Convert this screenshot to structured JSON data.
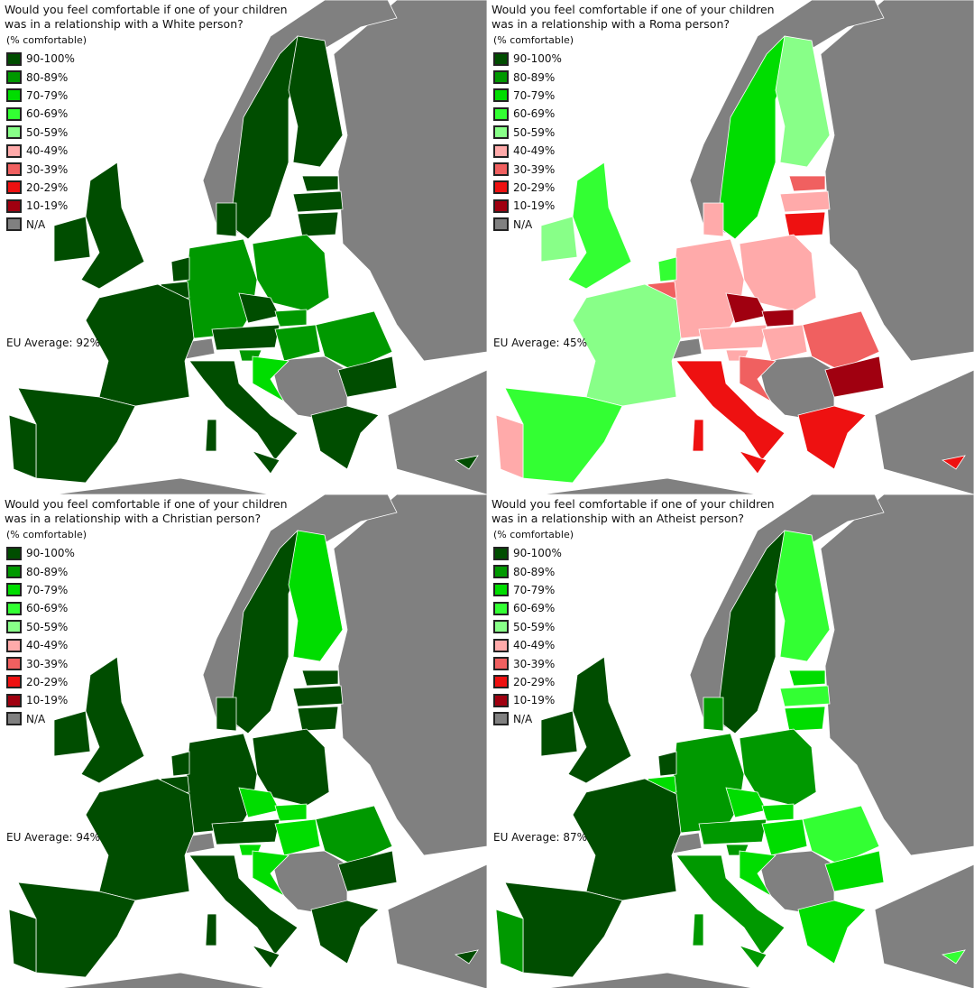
{
  "legend_unit": "(% comfortable)",
  "legend": [
    {
      "label": "90-100%",
      "color": "#004d00"
    },
    {
      "label": "80-89%",
      "color": "#009900"
    },
    {
      "label": "70-79%",
      "color": "#00dd00"
    },
    {
      "label": "60-69%",
      "color": "#33ff33"
    },
    {
      "label": "50-59%",
      "color": "#88ff88"
    },
    {
      "label": "40-49%",
      "color": "#ffaaaa"
    },
    {
      "label": "30-39%",
      "color": "#f06060"
    },
    {
      "label": "20-29%",
      "color": "#ee1111"
    },
    {
      "label": "10-19%",
      "color": "#a00010"
    },
    {
      "label": "N/A",
      "color": "#808080"
    }
  ],
  "maps": [
    {
      "title_line1": "Would you feel comfortable if one of your children",
      "title_line2": "was in a relationship with a White person?",
      "eu_average": "EU Average: 92%",
      "categories": {
        "SE": 0,
        "FI": 0,
        "EE": 0,
        "LV": 0,
        "LT": 0,
        "PL": 1,
        "DE": 1,
        "DK": 0,
        "NL": 0,
        "BE": 0,
        "FR": 0,
        "UK": 0,
        "IE": 0,
        "ES": 0,
        "PT": 0,
        "IT": 0,
        "SIC": 0,
        "SAR": 0,
        "CZ": 0,
        "SK": 1,
        "AT": 0,
        "HU": 1,
        "SI": 1,
        "HR": 2,
        "RO": 1,
        "BG": 0,
        "GR": 0,
        "CY": 0
      }
    },
    {
      "title_line1": "Would you feel comfortable if one of your children",
      "title_line2": "was in a relationship with a Roma person?",
      "eu_average": "EU Average: 45%",
      "categories": {
        "SE": 2,
        "FI": 4,
        "EE": 6,
        "LV": 5,
        "LT": 7,
        "PL": 5,
        "DE": 5,
        "DK": 5,
        "NL": 3,
        "BE": 6,
        "FR": 4,
        "UK": 3,
        "IE": 4,
        "ES": 3,
        "PT": 5,
        "IT": 7,
        "SIC": 7,
        "SAR": 7,
        "CZ": 8,
        "SK": 8,
        "AT": 5,
        "HU": 5,
        "SI": 5,
        "HR": 6,
        "RO": 6,
        "BG": 8,
        "GR": 7,
        "CY": 7
      }
    },
    {
      "title_line1": "Would you feel comfortable if one of your children",
      "title_line2": "was in a relationship with a Christian person?",
      "eu_average": "EU Average: 94%",
      "categories": {
        "SE": 0,
        "FI": 2,
        "EE": 0,
        "LV": 0,
        "LT": 0,
        "PL": 0,
        "DE": 0,
        "DK": 0,
        "NL": 0,
        "BE": 0,
        "FR": 0,
        "UK": 0,
        "IE": 0,
        "ES": 0,
        "PT": 0,
        "IT": 0,
        "SIC": 0,
        "SAR": 0,
        "CZ": 2,
        "SK": 2,
        "AT": 0,
        "HU": 2,
        "SI": 2,
        "HR": 2,
        "RO": 1,
        "BG": 0,
        "GR": 0,
        "CY": 0
      }
    },
    {
      "title_line1": "Would you feel comfortable if one of your children",
      "title_line2": "was in a relationship with an Atheist person?",
      "eu_average": "EU Average: 87%",
      "categories": {
        "SE": 0,
        "FI": 3,
        "EE": 2,
        "LV": 3,
        "LT": 2,
        "PL": 1,
        "DE": 1,
        "DK": 1,
        "NL": 0,
        "BE": 2,
        "FR": 0,
        "UK": 0,
        "IE": 0,
        "ES": 0,
        "PT": 1,
        "IT": 1,
        "SIC": 1,
        "SAR": 1,
        "CZ": 2,
        "SK": 2,
        "AT": 1,
        "HU": 2,
        "SI": 1,
        "HR": 2,
        "RO": 3,
        "BG": 2,
        "GR": 2,
        "CY": 3
      }
    }
  ]
}
